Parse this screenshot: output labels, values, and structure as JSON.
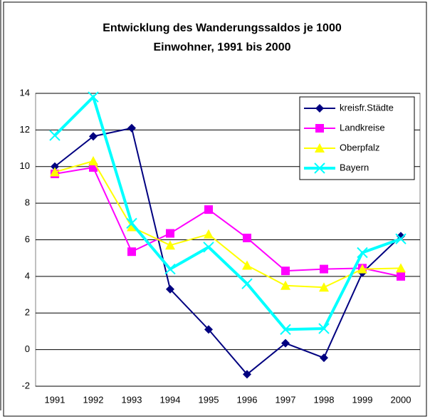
{
  "chart_data": {
    "type": "line",
    "title": [
      "Entwicklung des Wanderungssaldos je 1000",
      "Einwohner, 1991 bis 2000"
    ],
    "categories": [
      "1991",
      "1992",
      "1993",
      "1994",
      "1995",
      "1996",
      "1997",
      "1998",
      "1999",
      "2000"
    ],
    "series": [
      {
        "name": "kreisfr.Städte",
        "color": "#000080",
        "marker": "diamond",
        "values": [
          10.0,
          11.65,
          12.1,
          3.3,
          1.1,
          -1.35,
          0.35,
          -0.45,
          4.2,
          6.2
        ]
      },
      {
        "name": "Landkreise",
        "color": "#ff00ff",
        "marker": "square",
        "values": [
          9.6,
          9.95,
          5.35,
          6.35,
          7.65,
          6.1,
          4.3,
          4.4,
          4.45,
          4.0
        ]
      },
      {
        "name": "Oberpfalz",
        "color": "#ffff00",
        "marker": "triangle",
        "values": [
          9.7,
          10.3,
          6.7,
          5.7,
          6.3,
          4.6,
          3.5,
          3.4,
          4.4,
          4.45
        ]
      },
      {
        "name": "Bayern",
        "color": "#00ffff",
        "marker": "x",
        "values": [
          11.7,
          13.8,
          6.9,
          4.4,
          5.6,
          3.6,
          1.1,
          1.15,
          5.3,
          6.05
        ]
      }
    ],
    "ylim": [
      -2,
      14
    ],
    "yticks": [
      -2,
      0,
      2,
      4,
      6,
      8,
      10,
      12,
      14
    ],
    "grid": true,
    "legend": "top-right"
  }
}
